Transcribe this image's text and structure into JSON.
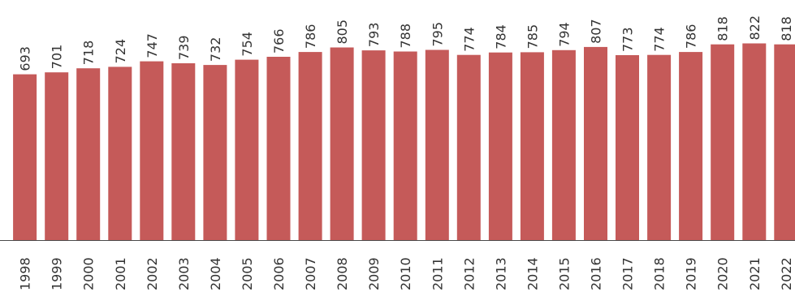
{
  "chart_data": {
    "type": "bar",
    "categories": [
      "1998",
      "1999",
      "2000",
      "2001",
      "2002",
      "2003",
      "2004",
      "2005",
      "2006",
      "2007",
      "2008",
      "2009",
      "2010",
      "2011",
      "2012",
      "2013",
      "2014",
      "2015",
      "2016",
      "2017",
      "2018",
      "2019",
      "2020",
      "2021",
      "2022"
    ],
    "values": [
      693,
      701,
      718,
      724,
      747,
      739,
      732,
      754,
      766,
      786,
      805,
      793,
      788,
      795,
      774,
      784,
      785,
      794,
      807,
      773,
      774,
      786,
      818,
      822,
      818
    ],
    "title": "",
    "xlabel": "",
    "ylabel": "",
    "ylim": [
      0,
      850
    ],
    "grid": false,
    "legend": "none",
    "bar_color": "#c55a59",
    "data_labels": "rotated"
  }
}
